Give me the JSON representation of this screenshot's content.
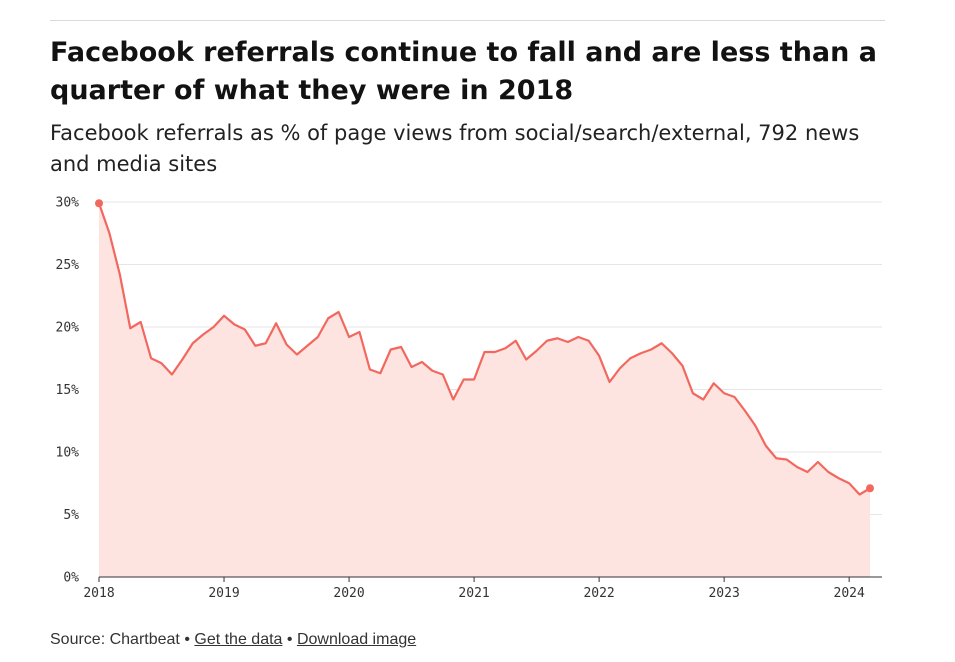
{
  "header": {
    "title": "Facebook referrals continue to fall and are less than a quarter of what they were in 2018",
    "subtitle": "Facebook referrals as % of page views from social/search/external, 792 news and media sites"
  },
  "footer": {
    "source": "Source: Chartbeat",
    "separator": "•",
    "get_data_label": "Get the data",
    "download_label": "Download image"
  },
  "colors": {
    "line": "#f2685f",
    "area": "#fde4e1",
    "grid": "#e6e6e6",
    "axis": "#333333"
  },
  "chart_data": {
    "type": "area",
    "title": "Facebook referrals continue to fall and are less than a quarter of what they were in 2018",
    "subtitle": "Facebook referrals as % of page views from social/search/external, 792 news and media sites",
    "xlabel": "",
    "ylabel": "",
    "ylim": [
      0,
      30
    ],
    "xlim": [
      "2018-01",
      "2024-03"
    ],
    "grid": true,
    "legend": "none",
    "x_tick_labels": [
      "2018",
      "2019",
      "2020",
      "2021",
      "2022",
      "2023",
      "2024"
    ],
    "y_tick_labels": [
      "0%",
      "5%",
      "10%",
      "15%",
      "20%",
      "25%",
      "30%"
    ],
    "x": [
      "2018-01",
      "2018-02",
      "2018-03",
      "2018-04",
      "2018-05",
      "2018-06",
      "2018-07",
      "2018-08",
      "2018-09",
      "2018-10",
      "2018-11",
      "2018-12",
      "2019-01",
      "2019-02",
      "2019-03",
      "2019-04",
      "2019-05",
      "2019-06",
      "2019-07",
      "2019-08",
      "2019-09",
      "2019-10",
      "2019-11",
      "2019-12",
      "2020-01",
      "2020-02",
      "2020-03",
      "2020-04",
      "2020-05",
      "2020-06",
      "2020-07",
      "2020-08",
      "2020-09",
      "2020-10",
      "2020-11",
      "2020-12",
      "2021-01",
      "2021-02",
      "2021-03",
      "2021-04",
      "2021-05",
      "2021-06",
      "2021-07",
      "2021-08",
      "2021-09",
      "2021-10",
      "2021-11",
      "2021-12",
      "2022-01",
      "2022-02",
      "2022-03",
      "2022-04",
      "2022-05",
      "2022-06",
      "2022-07",
      "2022-08",
      "2022-09",
      "2022-10",
      "2022-11",
      "2022-12",
      "2023-01",
      "2023-02",
      "2023-03",
      "2023-04",
      "2023-05",
      "2023-06",
      "2023-07",
      "2023-08",
      "2023-09",
      "2023-10",
      "2023-11",
      "2023-12",
      "2024-01",
      "2024-02",
      "2024-03"
    ],
    "series": [
      {
        "values": [
          29.9,
          27.5,
          24.2,
          19.9,
          20.4,
          17.5,
          17.1,
          16.2,
          17.4,
          18.7,
          19.4,
          20.0,
          20.9,
          20.2,
          19.8,
          18.5,
          18.7,
          20.3,
          18.6,
          17.8,
          18.5,
          19.2,
          20.7,
          21.2,
          19.2,
          19.6,
          16.6,
          16.3,
          18.2,
          18.4,
          16.8,
          17.2,
          16.5,
          16.2,
          14.2,
          15.8,
          15.8,
          18.0,
          18.0,
          18.3,
          18.9,
          17.4,
          18.1,
          18.9,
          19.1,
          18.8,
          19.2,
          18.9,
          17.7,
          15.6,
          16.7,
          17.5,
          17.9,
          18.2,
          18.7,
          17.9,
          16.9,
          14.7,
          14.2,
          15.5,
          14.7,
          14.4,
          13.3,
          12.1,
          10.5,
          9.5,
          9.4,
          8.8,
          8.4,
          9.2,
          8.4,
          7.9,
          7.5,
          6.6,
          7.1
        ]
      }
    ]
  }
}
